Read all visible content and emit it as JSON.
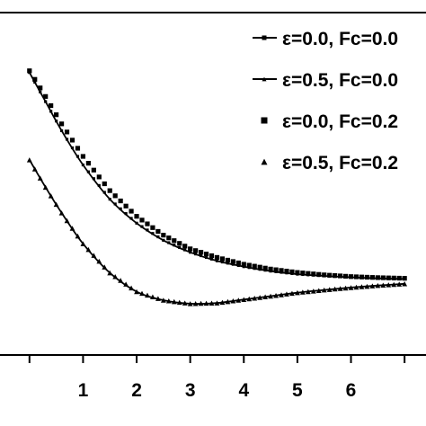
{
  "chart_data": {
    "type": "line",
    "xlim": [
      -0.55,
      7.4
    ],
    "ylim": [
      0,
      1
    ],
    "xticks": [
      0,
      1,
      2,
      3,
      4,
      5,
      6,
      7
    ],
    "xtick_labels": [
      "1",
      "2",
      "3",
      "4",
      "5",
      "6"
    ],
    "xtick_label_values": [
      1,
      2,
      3,
      4,
      5,
      6
    ],
    "grid": false,
    "legend_position": "top-right",
    "series": [
      {
        "name": "ε=0.0, Fc=0.0",
        "style": "line-square",
        "x": [
          0.0,
          0.3,
          0.6,
          1.0,
          1.5,
          2.0,
          2.5,
          3.0,
          3.5,
          4.0,
          4.5,
          5.0,
          5.5,
          6.0,
          6.5,
          7.0
        ],
        "y": [
          0.825,
          0.74,
          0.655,
          0.555,
          0.455,
          0.385,
          0.335,
          0.3,
          0.275,
          0.258,
          0.245,
          0.236,
          0.231,
          0.227,
          0.224,
          0.222
        ]
      },
      {
        "name": "ε=0.5, Fc=0.0",
        "style": "line-triangle",
        "x": [
          0.0,
          0.3,
          0.6,
          1.0,
          1.5,
          2.0,
          2.5,
          3.0,
          3.5,
          4.0,
          4.5,
          5.0,
          5.5,
          6.0,
          6.5,
          7.0
        ],
        "y": [
          0.57,
          0.49,
          0.415,
          0.325,
          0.24,
          0.185,
          0.16,
          0.15,
          0.152,
          0.162,
          0.172,
          0.182,
          0.19,
          0.197,
          0.203,
          0.208
        ]
      },
      {
        "name": "ε=0.0, Fc=0.2",
        "style": "marker-square",
        "x": [
          0.0,
          0.3,
          0.6,
          1.0,
          1.5,
          2.0,
          2.5,
          3.0,
          3.5,
          4.0,
          4.5,
          5.0,
          5.5,
          6.0,
          6.5,
          7.0
        ],
        "y": [
          0.83,
          0.755,
          0.675,
          0.58,
          0.48,
          0.405,
          0.35,
          0.31,
          0.285,
          0.265,
          0.251,
          0.241,
          0.234,
          0.229,
          0.226,
          0.224
        ]
      },
      {
        "name": "ε=0.5, Fc=0.2",
        "style": "marker-triangle",
        "x": [
          0.0,
          0.3,
          0.6,
          1.0,
          1.5,
          2.0,
          2.5,
          3.0,
          3.5,
          4.0,
          4.5,
          5.0,
          5.5,
          6.0,
          6.5,
          7.0
        ],
        "y": [
          0.57,
          0.49,
          0.415,
          0.325,
          0.24,
          0.185,
          0.16,
          0.15,
          0.152,
          0.162,
          0.172,
          0.182,
          0.19,
          0.197,
          0.203,
          0.208
        ]
      }
    ]
  }
}
